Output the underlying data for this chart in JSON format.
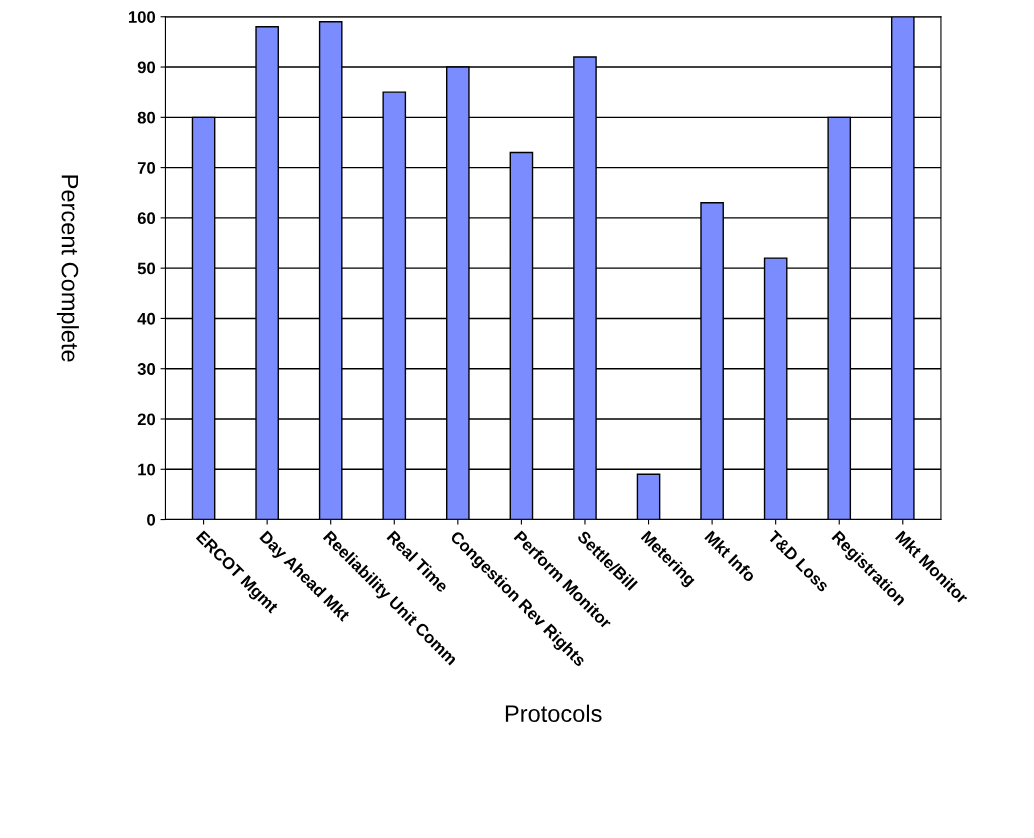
{
  "chart_data": {
    "type": "bar",
    "xlabel": "Protocols",
    "ylabel": "Percent Complete",
    "categories": [
      "ERCOT Mgmt",
      "Day Ahead Mkt",
      "Reeliability Unit Comm",
      "Real Time",
      "Congestion Rev Rights",
      "Perform Monitor",
      "Settle/Bill",
      "Metering",
      "Mkt Info",
      "T&D Loss",
      "Registration",
      "Mkt Monitor"
    ],
    "values": [
      80,
      98,
      99,
      85,
      90,
      73,
      92,
      9,
      63,
      52,
      80,
      100
    ],
    "color": "#7b8cff",
    "ylim": [
      0,
      100
    ],
    "yticks": [
      0,
      10,
      20,
      30,
      40,
      50,
      60,
      70,
      80,
      90,
      100
    ],
    "grid": "y"
  }
}
